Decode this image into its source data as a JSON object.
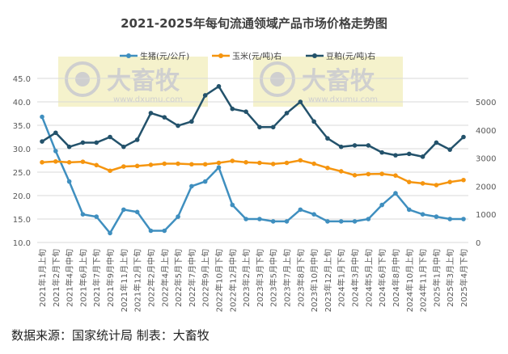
{
  "chart_data": {
    "type": "line",
    "title": "2021-2025年每旬流通领域产品市场价格走势图",
    "categories": [
      "2021年1月上旬",
      "2021年2月下旬",
      "2021年4月中旬",
      "2021年6月上旬",
      "2021年7月下旬",
      "2021年9月中旬",
      "2021年11月上旬",
      "2021年12月下旬",
      "2022年2月中旬",
      "2022年4月上旬",
      "2022年5月下旬",
      "2022年7月中旬",
      "2022年9月上旬",
      "2022年10月下旬",
      "2022年12月中旬",
      "2023年2月上旬",
      "2023年3月下旬",
      "2023年5月中旬",
      "2023年7月上旬",
      "2023年8月下旬",
      "2023年10月中旬",
      "2023年12月上旬",
      "2024年1月下旬",
      "2024年3月中旬",
      "2024年5月上旬",
      "2024年6月下旬",
      "2024年8月中旬",
      "2024年10月上旬",
      "2024年11月下旬",
      "2025年1月中旬",
      "2025年3月上旬",
      "2025年4月下旬"
    ],
    "left_axis": {
      "ylim": [
        10,
        45
      ],
      "ticks": [
        "10.0",
        "15.0",
        "20.0",
        "25.0",
        "30.0",
        "35.0",
        "40.0",
        "45.0"
      ]
    },
    "right_axis": {
      "ylim": [
        0,
        5833
      ],
      "ticks": [
        "0",
        "1000",
        "2000",
        "3000",
        "4000",
        "5000"
      ]
    },
    "grid": true,
    "legend": "top",
    "series": [
      {
        "name": "生猪(元/公斤)",
        "axis": "left",
        "color": "#3f8fbf",
        "values": [
          36.8,
          29.5,
          23,
          16,
          15.5,
          12,
          17,
          16.5,
          12.5,
          12.5,
          15.5,
          22,
          23,
          26,
          18,
          15,
          15,
          14.5,
          14.5,
          17,
          16,
          14.5,
          14.5,
          14.5,
          15,
          18,
          20.5,
          17,
          16,
          15.5,
          15,
          15
        ]
      },
      {
        "name": "玉米(元/吨)右",
        "axis": "right",
        "color": "#f5950f",
        "values": [
          2850,
          2880,
          2850,
          2870,
          2750,
          2550,
          2700,
          2720,
          2760,
          2800,
          2800,
          2780,
          2780,
          2830,
          2900,
          2850,
          2830,
          2790,
          2830,
          2920,
          2800,
          2650,
          2530,
          2390,
          2430,
          2440,
          2380,
          2150,
          2100,
          2040,
          2150,
          2220
        ]
      },
      {
        "name": "豆粕(元/吨)右",
        "axis": "right",
        "color": "#23526b",
        "values": [
          3590,
          3900,
          3400,
          3550,
          3550,
          3750,
          3400,
          3650,
          4600,
          4450,
          4150,
          4300,
          5230,
          5550,
          4750,
          4650,
          4100,
          4100,
          4600,
          5000,
          4300,
          3700,
          3400,
          3450,
          3450,
          3200,
          3100,
          3150,
          3050,
          3550,
          3300,
          3750
        ]
      }
    ]
  },
  "watermark": {
    "brand": "大畜牧",
    "url": "www.dxumu.com"
  },
  "footer": "数据来源：国家统计局  制表：大畜牧"
}
